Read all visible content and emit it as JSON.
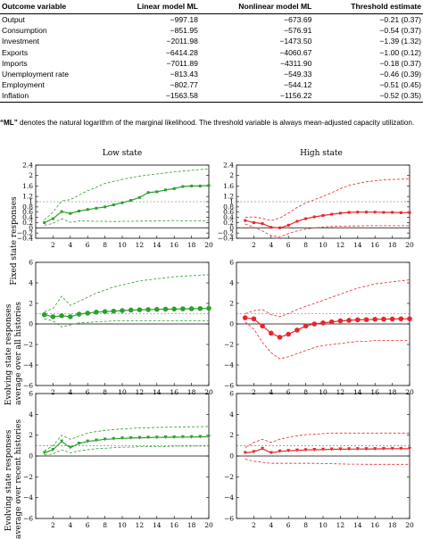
{
  "table": {
    "headers": [
      "Outcome variable",
      "Linear model ML",
      "Nonlinear model ML",
      "Threshold estimate"
    ],
    "rows": [
      [
        "Output",
        "−997.18",
        "−673.69",
        "−0.21 (0.37)"
      ],
      [
        "Consumption",
        "−851.95",
        "−576.91",
        "−0.54 (0.37)"
      ],
      [
        "Investment",
        "−2011.98",
        "−1473.50",
        "−1.39 (1.32)"
      ],
      [
        "Exports",
        "−6414.28",
        "−4060.67",
        "−1.00 (0.12)"
      ],
      [
        "Imports",
        "−7011.89",
        "−4311.90",
        "−0.18 (0.37)"
      ],
      [
        "Unemployment rate",
        "−813.43",
        "−549.33",
        "−0.46 (0.39)"
      ],
      [
        "Employment",
        "−802.77",
        "−544.12",
        "−0.51 (0.45)"
      ],
      [
        "Inflation",
        "−1563.58",
        "−1156.22",
        "−0.52 (0.35)"
      ]
    ]
  },
  "note": {
    "bold": "“ML”",
    "text": " denotes the natural logarithm of the marginal likelihood. The threshold variable is always mean-adjusted capacity utilization."
  },
  "columns": {
    "left": "Low state",
    "right": "High state"
  },
  "row_labels": [
    [
      "Fixed state responses"
    ],
    [
      "Evolving state responses",
      "average over all histories"
    ],
    [
      "Evolving state responses",
      "average over recent histories"
    ]
  ],
  "colors": {
    "green": "#2e9e2e",
    "red": "#e8262a",
    "grid": "#666666"
  },
  "chart_data": [
    {
      "type": "line",
      "title": "Low state",
      "ylabel": "Fixed state responses",
      "x": [
        1,
        2,
        3,
        4,
        5,
        6,
        7,
        8,
        9,
        10,
        11,
        12,
        13,
        14,
        15,
        16,
        17,
        18,
        19,
        20
      ],
      "ylim": [
        -0.4,
        2.4
      ],
      "yticks": [
        -0.4,
        -0.2,
        0,
        0.2,
        0.4,
        0.6,
        0.8,
        1,
        1.2,
        1.6,
        2,
        2.4
      ],
      "xticks": [
        2,
        4,
        6,
        8,
        10,
        12,
        14,
        16,
        18,
        20
      ],
      "reference_line": 1,
      "marker": "square",
      "series": [
        {
          "role": "estimate",
          "values": [
            0.2,
            0.35,
            0.62,
            0.55,
            0.64,
            0.7,
            0.75,
            0.8,
            0.88,
            0.96,
            1.05,
            1.16,
            1.35,
            1.38,
            1.45,
            1.5,
            1.58,
            1.6,
            1.6,
            1.62
          ]
        },
        {
          "role": "upper band",
          "values": [
            0.3,
            0.6,
            1.03,
            1.08,
            1.25,
            1.42,
            1.55,
            1.7,
            1.78,
            1.85,
            1.92,
            1.98,
            2.02,
            2.06,
            2.1,
            2.14,
            2.17,
            2.2,
            2.23,
            2.26
          ]
        },
        {
          "role": "lower band",
          "values": [
            0.1,
            0.17,
            0.35,
            0.21,
            0.26,
            0.26,
            0.25,
            0.25,
            0.24,
            0.25,
            0.25,
            0.26,
            0.26,
            0.26,
            0.27,
            0.28,
            0.27,
            0.27,
            0.27,
            0.28
          ]
        }
      ]
    },
    {
      "type": "line",
      "title": "High state",
      "ylabel": "",
      "x": [
        1,
        2,
        3,
        4,
        5,
        6,
        7,
        8,
        9,
        10,
        11,
        12,
        13,
        14,
        15,
        16,
        17,
        18,
        19,
        20
      ],
      "ylim": [
        -0.4,
        2.4
      ],
      "yticks": [
        -0.4,
        -0.2,
        0,
        0.2,
        0.4,
        0.6,
        0.8,
        1,
        1.2,
        1.6,
        2,
        2.4
      ],
      "xticks": [
        2,
        4,
        6,
        8,
        10,
        12,
        14,
        16,
        18,
        20
      ],
      "reference_line": 1,
      "marker": "square",
      "series": [
        {
          "role": "estimate",
          "values": [
            0.28,
            0.2,
            0.16,
            0.02,
            0.0,
            0.1,
            0.25,
            0.35,
            0.42,
            0.47,
            0.52,
            0.56,
            0.59,
            0.6,
            0.6,
            0.6,
            0.59,
            0.59,
            0.58,
            0.58
          ]
        },
        {
          "role": "upper band",
          "values": [
            0.4,
            0.42,
            0.36,
            0.28,
            0.38,
            0.56,
            0.78,
            0.95,
            1.08,
            1.2,
            1.34,
            1.5,
            1.62,
            1.7,
            1.76,
            1.8,
            1.83,
            1.85,
            1.86,
            1.88
          ]
        },
        {
          "role": "lower band",
          "values": [
            0.15,
            0.02,
            -0.12,
            -0.3,
            -0.35,
            -0.22,
            -0.12,
            -0.05,
            0.0,
            0.03,
            0.05,
            0.06,
            0.07,
            0.07,
            0.08,
            0.08,
            0.08,
            0.08,
            0.08,
            0.08
          ]
        }
      ]
    },
    {
      "type": "line",
      "title": "",
      "ylabel": "Evolving state responses average over all histories",
      "x": [
        1,
        2,
        3,
        4,
        5,
        6,
        7,
        8,
        9,
        10,
        11,
        12,
        13,
        14,
        15,
        16,
        17,
        18,
        19,
        20
      ],
      "ylim": [
        -6,
        6
      ],
      "yticks": [
        -6,
        -4,
        -2,
        0,
        2,
        4,
        6
      ],
      "xticks": [
        2,
        4,
        6,
        8,
        10,
        12,
        14,
        16,
        18,
        20
      ],
      "reference_line": 1,
      "marker": "circle",
      "series": [
        {
          "role": "estimate",
          "values": [
            0.9,
            0.7,
            0.8,
            0.7,
            0.95,
            1.05,
            1.15,
            1.2,
            1.25,
            1.3,
            1.35,
            1.38,
            1.4,
            1.42,
            1.44,
            1.45,
            1.47,
            1.48,
            1.5,
            1.52
          ]
        },
        {
          "role": "upper band",
          "values": [
            1.2,
            1.5,
            2.7,
            1.8,
            2.2,
            2.6,
            3.0,
            3.3,
            3.6,
            3.8,
            4.0,
            4.2,
            4.3,
            4.4,
            4.5,
            4.6,
            4.65,
            4.7,
            4.75,
            4.8
          ]
        },
        {
          "role": "lower band",
          "values": [
            0.5,
            0.3,
            -0.3,
            -0.1,
            0.1,
            0.15,
            0.2,
            0.25,
            0.3,
            0.3,
            0.3,
            0.3,
            0.3,
            0.3,
            0.3,
            0.3,
            0.3,
            0.3,
            0.3,
            0.3
          ]
        }
      ]
    },
    {
      "type": "line",
      "title": "",
      "ylabel": "",
      "x": [
        1,
        2,
        3,
        4,
        5,
        6,
        7,
        8,
        9,
        10,
        11,
        12,
        13,
        14,
        15,
        16,
        17,
        18,
        19,
        20
      ],
      "ylim": [
        -6,
        6
      ],
      "yticks": [
        -6,
        -4,
        -2,
        0,
        2,
        4,
        6
      ],
      "xticks": [
        2,
        4,
        6,
        8,
        10,
        12,
        14,
        16,
        18,
        20
      ],
      "reference_line": 1,
      "marker": "circle",
      "series": [
        {
          "role": "estimate",
          "values": [
            0.6,
            0.5,
            -0.2,
            -0.9,
            -1.3,
            -1.0,
            -0.6,
            -0.2,
            0.0,
            0.1,
            0.2,
            0.3,
            0.35,
            0.4,
            0.42,
            0.45,
            0.47,
            0.48,
            0.5,
            0.5
          ]
        },
        {
          "role": "upper band",
          "values": [
            1.0,
            1.3,
            1.4,
            0.9,
            0.7,
            1.0,
            1.4,
            1.7,
            2.0,
            2.3,
            2.6,
            2.9,
            3.2,
            3.5,
            3.7,
            3.9,
            4.0,
            4.1,
            4.2,
            4.3
          ]
        },
        {
          "role": "lower band",
          "values": [
            0.2,
            -0.5,
            -1.8,
            -2.8,
            -3.4,
            -3.2,
            -2.9,
            -2.6,
            -2.3,
            -2.1,
            -2.0,
            -1.9,
            -1.8,
            -1.7,
            -1.7,
            -1.6,
            -1.6,
            -1.6,
            -1.6,
            -1.6
          ]
        }
      ]
    },
    {
      "type": "line",
      "title": "",
      "ylabel": "Evolving state responses average over recent histories",
      "x": [
        1,
        2,
        3,
        4,
        5,
        6,
        7,
        8,
        9,
        10,
        11,
        12,
        13,
        14,
        15,
        16,
        17,
        18,
        19,
        20
      ],
      "ylim": [
        -6,
        6
      ],
      "yticks": [
        -6,
        -4,
        -2,
        0,
        2,
        4,
        6
      ],
      "xticks": [
        2,
        4,
        6,
        8,
        10,
        12,
        14,
        16,
        18,
        20
      ],
      "reference_line": 1,
      "marker": "triangle",
      "series": [
        {
          "role": "estimate",
          "values": [
            0.3,
            0.6,
            1.4,
            0.8,
            1.2,
            1.4,
            1.5,
            1.6,
            1.65,
            1.7,
            1.72,
            1.75,
            1.77,
            1.78,
            1.8,
            1.8,
            1.82,
            1.82,
            1.84,
            1.85
          ]
        },
        {
          "role": "upper band",
          "values": [
            0.5,
            1.0,
            2.0,
            1.6,
            1.9,
            2.2,
            2.35,
            2.45,
            2.55,
            2.6,
            2.65,
            2.7,
            2.72,
            2.74,
            2.76,
            2.78,
            2.8,
            2.8,
            2.82,
            2.84
          ]
        },
        {
          "role": "lower band",
          "values": [
            0.1,
            0.2,
            0.6,
            0.3,
            0.5,
            0.6,
            0.7,
            0.75,
            0.8,
            0.85,
            0.85,
            0.9,
            0.9,
            0.92,
            0.92,
            0.94,
            0.94,
            0.95,
            0.95,
            0.96
          ]
        }
      ]
    },
    {
      "type": "line",
      "title": "",
      "ylabel": "",
      "x": [
        1,
        2,
        3,
        4,
        5,
        6,
        7,
        8,
        9,
        10,
        11,
        12,
        13,
        14,
        15,
        16,
        17,
        18,
        19,
        20
      ],
      "ylim": [
        -6,
        6
      ],
      "yticks": [
        -6,
        -4,
        -2,
        0,
        2,
        4,
        6
      ],
      "xticks": [
        2,
        4,
        6,
        8,
        10,
        12,
        14,
        16,
        18,
        20
      ],
      "reference_line": 1,
      "marker": "triangle",
      "series": [
        {
          "role": "estimate",
          "values": [
            0.3,
            0.4,
            0.7,
            0.3,
            0.45,
            0.5,
            0.55,
            0.58,
            0.6,
            0.62,
            0.64,
            0.65,
            0.66,
            0.67,
            0.68,
            0.68,
            0.69,
            0.7,
            0.7,
            0.7
          ]
        },
        {
          "role": "upper band",
          "values": [
            0.8,
            1.3,
            1.6,
            1.3,
            1.6,
            1.8,
            1.95,
            2.05,
            2.1,
            2.15,
            2.2,
            2.2,
            2.2,
            2.2,
            2.2,
            2.2,
            2.2,
            2.2,
            2.2,
            2.2
          ]
        },
        {
          "role": "lower band",
          "values": [
            -0.3,
            -0.5,
            -0.6,
            -0.7,
            -0.7,
            -0.7,
            -0.7,
            -0.7,
            -0.7,
            -0.72,
            -0.74,
            -0.76,
            -0.78,
            -0.78,
            -0.8,
            -0.8,
            -0.8,
            -0.8,
            -0.8,
            -0.8
          ]
        }
      ]
    }
  ]
}
